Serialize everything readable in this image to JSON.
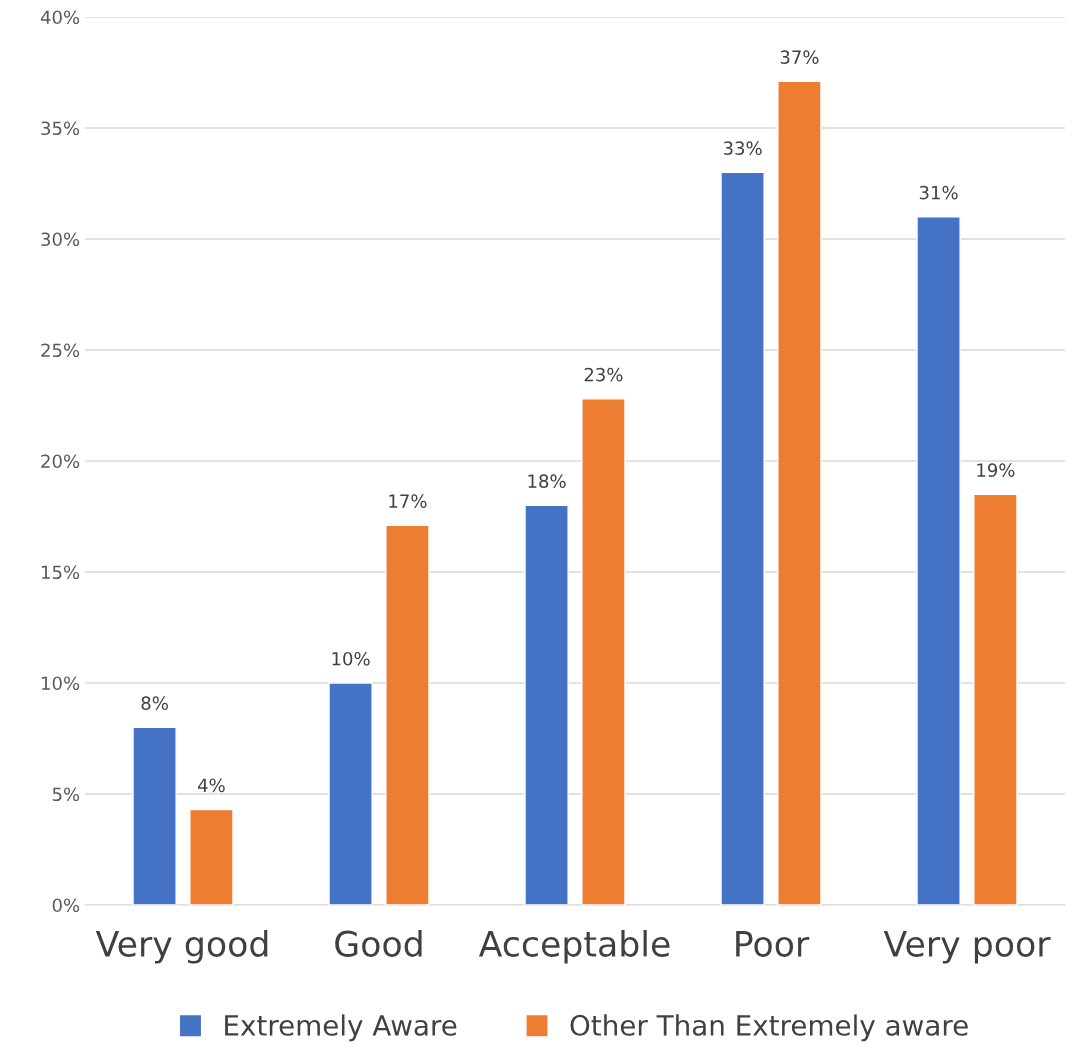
{
  "chart_data": {
    "type": "bar",
    "categories": [
      "Very good",
      "Good",
      "Acceptable",
      "Poor",
      "Very poor"
    ],
    "series": [
      {
        "name": "Extremely Aware",
        "color": "#4472c4",
        "values": [
          8,
          10,
          18,
          33,
          31
        ],
        "value_labels": [
          "8%",
          "10%",
          "18%",
          "33%",
          "31%"
        ]
      },
      {
        "name": "Other Than Extremely aware",
        "color": "#ed7d31",
        "values": [
          4.3,
          17.1,
          22.8,
          37.1,
          18.5
        ],
        "value_labels": [
          "4%",
          "17%",
          "23%",
          "37%",
          "19%"
        ]
      }
    ],
    "ylim": [
      0,
      40
    ],
    "yticks": [
      {
        "value": 0,
        "label": "0%"
      },
      {
        "value": 5,
        "label": "5%"
      },
      {
        "value": 10,
        "label": "10%"
      },
      {
        "value": 15,
        "label": "15%"
      },
      {
        "value": 20,
        "label": "20%"
      },
      {
        "value": 25,
        "label": "25%"
      },
      {
        "value": 30,
        "label": "30%"
      },
      {
        "value": 35,
        "label": "35%"
      },
      {
        "value": 40,
        "label": "40%"
      }
    ],
    "grid": "y",
    "legend": "bottom"
  }
}
